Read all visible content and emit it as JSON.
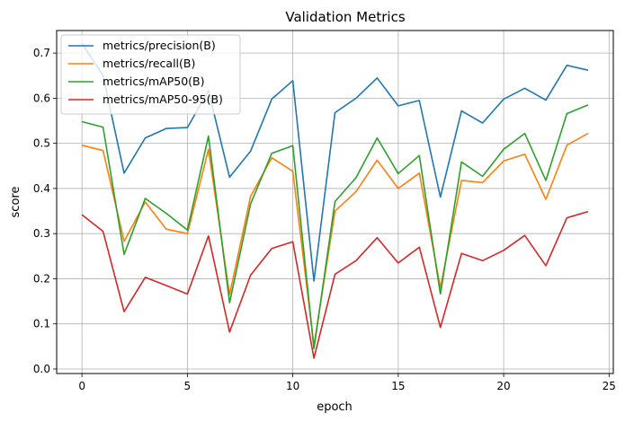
{
  "chart_data": {
    "type": "line",
    "title": "Validation Metrics",
    "xlabel": "epoch",
    "ylabel": "score",
    "xlim": [
      -1.2,
      25.2
    ],
    "ylim": [
      -0.01,
      0.75
    ],
    "x_ticks": [
      0,
      5,
      10,
      15,
      20,
      25
    ],
    "y_ticks": [
      0.0,
      0.1,
      0.2,
      0.3,
      0.4,
      0.5,
      0.6,
      0.7
    ],
    "grid": true,
    "legend_position": "top-left",
    "x": [
      0,
      1,
      2,
      3,
      4,
      5,
      6,
      7,
      8,
      9,
      10,
      11,
      12,
      13,
      14,
      15,
      16,
      17,
      18,
      19,
      20,
      21,
      22,
      23,
      24
    ],
    "series": [
      {
        "name": "metrics/precision(B)",
        "color": "#1f77b4",
        "values": [
          0.722,
          0.65,
          0.434,
          0.512,
          0.533,
          0.535,
          0.617,
          0.425,
          0.483,
          0.598,
          0.639,
          0.195,
          0.568,
          0.6,
          0.645,
          0.583,
          0.595,
          0.381,
          0.572,
          0.545,
          0.598,
          0.622,
          0.596,
          0.673,
          0.662
        ]
      },
      {
        "name": "metrics/recall(B)",
        "color": "#ff7f0e",
        "values": [
          0.496,
          0.484,
          0.283,
          0.37,
          0.31,
          0.3,
          0.487,
          0.165,
          0.383,
          0.468,
          0.438,
          0.052,
          0.35,
          0.393,
          0.463,
          0.4,
          0.434,
          0.18,
          0.418,
          0.413,
          0.461,
          0.476,
          0.376,
          0.496,
          0.522
        ]
      },
      {
        "name": "metrics/mAP50(B)",
        "color": "#2ca02c",
        "values": [
          0.548,
          0.536,
          0.254,
          0.378,
          0.345,
          0.308,
          0.516,
          0.147,
          0.366,
          0.478,
          0.495,
          0.045,
          0.371,
          0.424,
          0.512,
          0.433,
          0.473,
          0.166,
          0.459,
          0.427,
          0.487,
          0.522,
          0.418,
          0.566,
          0.585
        ]
      },
      {
        "name": "metrics/mAP50-95(B)",
        "color": "#d62728",
        "values": [
          0.342,
          0.305,
          0.127,
          0.203,
          0.185,
          0.166,
          0.295,
          0.082,
          0.208,
          0.267,
          0.282,
          0.024,
          0.21,
          0.24,
          0.291,
          0.235,
          0.27,
          0.092,
          0.256,
          0.24,
          0.263,
          0.296,
          0.229,
          0.335,
          0.349
        ]
      }
    ]
  }
}
